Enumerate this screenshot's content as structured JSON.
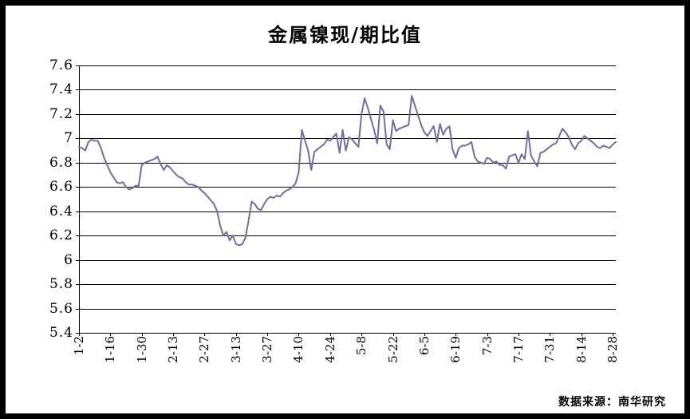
{
  "title": "金属镍现/期比值",
  "source_note": "数据来源：南华研究",
  "colors": {
    "line": "#6F6F9F",
    "grid": "#000000",
    "axis": "#000000",
    "frame": "#000000",
    "background": "#FFFFFF",
    "text": "#000000"
  },
  "chart_data": {
    "type": "line",
    "title": "金属镍现/期比值",
    "xlabel": "",
    "ylabel": "",
    "ylim": [
      5.4,
      7.6
    ],
    "y_tick_step": 0.2,
    "y_tick_labels": [
      "7.6",
      "7.4",
      "7.2",
      "7",
      "6.8",
      "6.6",
      "6.4",
      "6.2",
      "6",
      "5.8",
      "5.6",
      "5.4"
    ],
    "x_tick_labels": [
      "1-2",
      "1-16",
      "1-30",
      "2-13",
      "2-27",
      "3-13",
      "3-27",
      "4-10",
      "4-24",
      "5-8",
      "5-22",
      "6-5",
      "6-19",
      "7-3",
      "7-17",
      "7-31",
      "8-14",
      "8-28"
    ],
    "x_tick_interval": 10,
    "grid": "horizontal",
    "legend_position": "none",
    "series": [
      {
        "name": "金属镍现/期比值",
        "values": [
          6.93,
          6.92,
          6.9,
          6.97,
          6.99,
          6.98,
          6.98,
          6.92,
          6.84,
          6.78,
          6.72,
          6.68,
          6.64,
          6.63,
          6.64,
          6.6,
          6.58,
          6.59,
          6.61,
          6.61,
          6.78,
          6.8,
          6.81,
          6.82,
          6.83,
          6.85,
          6.79,
          6.74,
          6.78,
          6.76,
          6.73,
          6.7,
          6.68,
          6.67,
          6.64,
          6.62,
          6.62,
          6.61,
          6.6,
          6.57,
          6.55,
          6.52,
          6.49,
          6.46,
          6.4,
          6.28,
          6.2,
          6.23,
          6.16,
          6.2,
          6.13,
          6.12,
          6.13,
          6.18,
          6.32,
          6.48,
          6.46,
          6.42,
          6.41,
          6.46,
          6.5,
          6.52,
          6.51,
          6.53,
          6.52,
          6.55,
          6.57,
          6.58,
          6.6,
          6.63,
          6.72,
          7.07,
          6.98,
          6.9,
          6.74,
          6.89,
          6.91,
          6.93,
          6.95,
          6.99,
          6.98,
          7.01,
          7.04,
          6.88,
          7.07,
          6.9,
          7.01,
          6.99,
          6.96,
          6.93,
          7.2,
          7.33,
          7.25,
          7.16,
          7.07,
          6.96,
          7.27,
          7.22,
          6.95,
          6.91,
          7.15,
          7.06,
          7.08,
          7.09,
          7.1,
          7.11,
          7.35,
          7.27,
          7.19,
          7.11,
          7.05,
          7.02,
          7.06,
          7.1,
          6.97,
          7.12,
          7.03,
          7.08,
          7.1,
          6.91,
          6.84,
          6.92,
          6.94,
          6.94,
          6.95,
          6.97,
          6.85,
          6.81,
          6.8,
          6.79,
          6.84,
          6.83,
          6.8,
          6.81,
          6.78,
          6.78,
          6.75,
          6.85,
          6.86,
          6.87,
          6.8,
          6.87,
          6.83,
          7.06,
          6.86,
          6.81,
          6.77,
          6.88,
          6.89,
          6.91,
          6.93,
          6.95,
          6.96,
          7.02,
          7.08,
          7.05,
          7.01,
          6.95,
          6.91,
          6.96,
          6.98,
          7.02,
          7.0,
          6.98,
          6.96,
          6.93,
          6.92,
          6.94,
          6.93,
          6.92,
          6.95,
          6.97
        ]
      }
    ]
  }
}
